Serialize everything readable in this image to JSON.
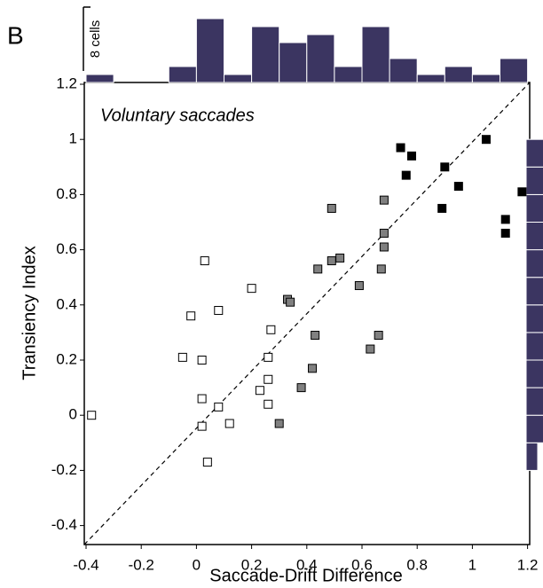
{
  "panel_label": "B",
  "chart_data": {
    "type": "scatter",
    "annotation": "Voluntary saccades",
    "x_label": "Saccade-Drift Difference",
    "y_label": "Transiency Index",
    "xlim": [
      -0.4,
      1.2
    ],
    "ylim": [
      -0.4,
      1.2
    ],
    "xticks": [
      -0.4,
      -0.2,
      0,
      0.2,
      0.4,
      0.6,
      0.8,
      1,
      1.2
    ],
    "yticks": [
      -0.4,
      -0.2,
      0,
      0.2,
      0.4,
      0.6,
      0.8,
      1,
      1.2
    ],
    "identity_line": true,
    "series": [
      {
        "color": "#ffffff",
        "x": [
          -0.38,
          0.03,
          -0.02,
          -0.05,
          0.02,
          0.08,
          0.2,
          0.27,
          0.26,
          0.26,
          0.23,
          0.26,
          0.02,
          0.02,
          0.08,
          0.12,
          0.04
        ],
        "values": [
          0.0,
          0.56,
          0.36,
          0.21,
          0.2,
          0.38,
          0.46,
          0.31,
          0.21,
          0.13,
          0.09,
          0.04,
          0.06,
          -0.04,
          0.03,
          -0.03,
          -0.17
        ]
      },
      {
        "color": "#808080",
        "x": [
          0.33,
          0.34,
          0.44,
          0.49,
          0.52,
          0.49,
          0.59,
          0.68,
          0.68,
          0.68,
          0.67,
          0.43,
          0.42,
          0.38,
          0.3,
          0.66,
          0.63
        ],
        "values": [
          0.42,
          0.41,
          0.53,
          0.56,
          0.57,
          0.75,
          0.47,
          0.78,
          0.66,
          0.61,
          0.53,
          0.29,
          0.17,
          0.1,
          -0.03,
          0.29,
          0.24
        ]
      },
      {
        "color": "#000000",
        "x": [
          0.74,
          0.78,
          0.76,
          0.9,
          0.95,
          0.89,
          1.05,
          1.18,
          1.12,
          1.12
        ],
        "values": [
          0.97,
          0.94,
          0.87,
          0.9,
          0.83,
          0.75,
          1.0,
          0.81,
          0.71,
          0.66
        ]
      }
    ],
    "hist_color": "#3b3561",
    "top_histogram": {
      "bins": [
        -0.4,
        -0.3,
        -0.2,
        -0.1,
        0,
        0.1,
        0.2,
        0.3,
        0.4,
        0.5,
        0.6,
        0.7,
        0.8,
        0.9,
        1,
        1.1,
        1.2
      ],
      "values": [
        1,
        0,
        0,
        2,
        8,
        1,
        7,
        5,
        6,
        2,
        7,
        3,
        1,
        2,
        1,
        3
      ]
    },
    "right_histogram": {
      "bins": [
        -0.2,
        -0.1,
        0,
        0.1,
        0.2,
        0.3,
        0.4,
        0.5,
        0.6,
        0.7,
        0.8,
        0.9,
        1
      ],
      "values": [
        1,
        3,
        5,
        3,
        6,
        3,
        4,
        5,
        3,
        4,
        3,
        4
      ]
    },
    "scale_bar": {
      "value": 8,
      "label": "8 cells"
    }
  }
}
